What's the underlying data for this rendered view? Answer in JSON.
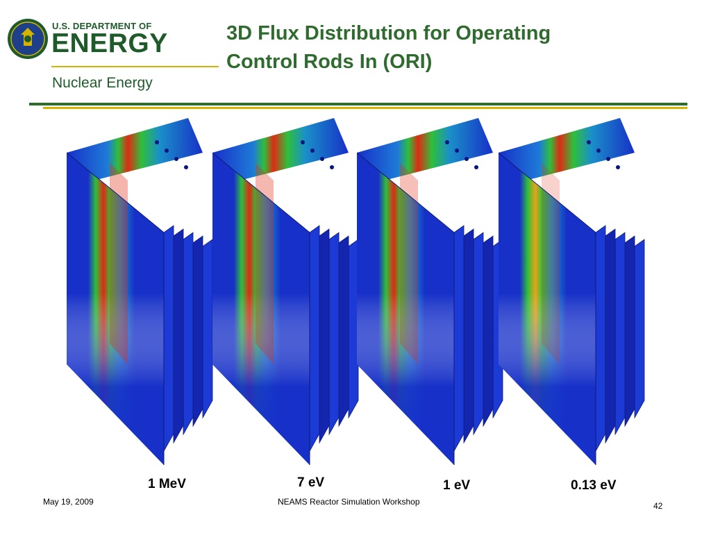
{
  "header": {
    "logo": {
      "agency_small": "U.S. DEPARTMENT OF",
      "agency_big": "ENERGY",
      "office": "Nuclear Energy",
      "seal": "doe-seal-icon"
    },
    "title_lines": [
      "3D Flux Distribution for Operating",
      "Control Rods In (ORI)"
    ]
  },
  "figure": {
    "panels": [
      {
        "label": "1 MeV",
        "hot_fraction": 1.0
      },
      {
        "label": "7 eV",
        "hot_fraction": 0.95
      },
      {
        "label": "1 eV",
        "hot_fraction": 0.85
      },
      {
        "label": "0.13 eV",
        "hot_fraction": 0.6
      }
    ]
  },
  "footer": {
    "date": "May 19, 2009",
    "event": "NEAMS Reactor Simulation Workshop",
    "page": "42"
  },
  "colors": {
    "brand_green": "#2f6b2f",
    "accent_gold": "#d4b400",
    "flux_low": "#1730c8",
    "flux_mid": "#2fbf3a",
    "flux_high": "#e02a14"
  }
}
